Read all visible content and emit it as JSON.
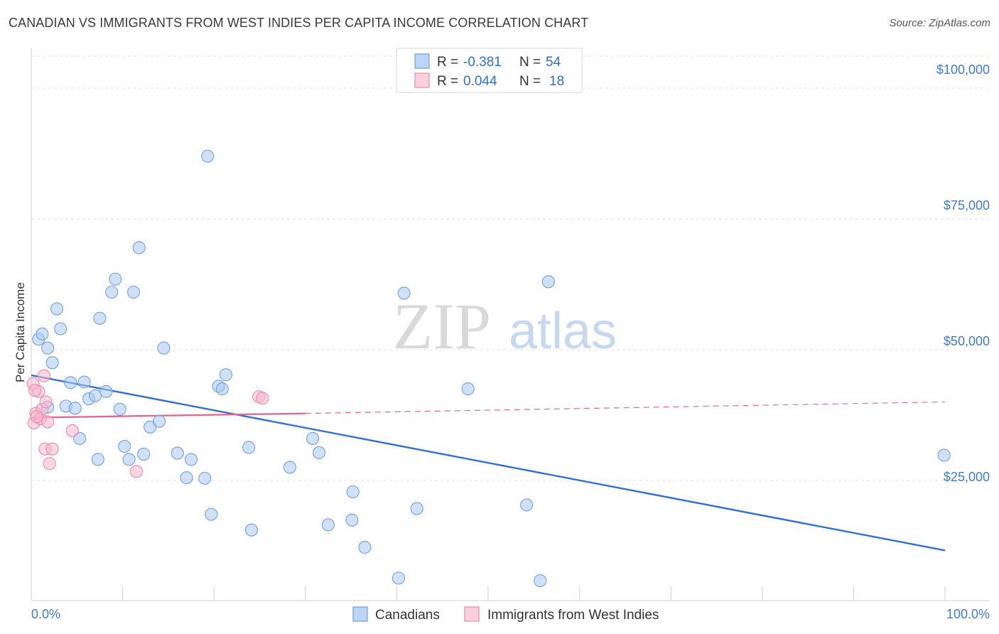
{
  "title": "CANADIAN VS IMMIGRANTS FROM WEST INDIES PER CAPITA INCOME CORRELATION CHART",
  "source": "Source: ZipAtlas.com",
  "watermark": {
    "zip": "ZIP",
    "atlas": "atlas"
  },
  "colors": {
    "blue_fill": "#a9c9f0",
    "blue_stroke": "#6fa0de",
    "blue_line": "#2f6fd6",
    "pink_fill": "#f7b6cc",
    "pink_stroke": "#e98aa9",
    "pink_line": "#e06b92",
    "axis_text": "#3d7bd4",
    "grid": "#e3e3e3"
  },
  "legend": {
    "rows": [
      {
        "r_label": "R =",
        "r_value": "-0.381",
        "n_label": "N =",
        "n_value": "54"
      },
      {
        "r_label": "R =",
        "r_value": "0.044",
        "n_label": "N =",
        "n_value": "18"
      }
    ]
  },
  "chart_data": {
    "type": "scatter",
    "title": "CANADIAN VS IMMIGRANTS FROM WEST INDIES PER CAPITA INCOME CORRELATION CHART",
    "xlabel": "",
    "ylabel": "Per Capita Income",
    "xlim": [
      0,
      100
    ],
    "ylim": [
      2000,
      106000
    ],
    "x_tick_labels": [
      "0.0%",
      "100.0%"
    ],
    "y_ticks": [
      25000,
      50000,
      75000,
      100000
    ],
    "y_tick_labels": [
      "$25,000",
      "$50,000",
      "$75,000",
      "$100,000"
    ],
    "grid": true,
    "series": [
      {
        "name": "Canadians",
        "points": [
          [
            1.8,
            39000
          ],
          [
            0.8,
            52000
          ],
          [
            1.2,
            53000
          ],
          [
            1.8,
            50300
          ],
          [
            2.3,
            47500
          ],
          [
            2.8,
            57800
          ],
          [
            3.2,
            54000
          ],
          [
            3.8,
            39200
          ],
          [
            4.3,
            43700
          ],
          [
            4.8,
            38800
          ],
          [
            5.3,
            33000
          ],
          [
            5.8,
            43800
          ],
          [
            6.3,
            40600
          ],
          [
            7.0,
            41200
          ],
          [
            7.3,
            29000
          ],
          [
            7.5,
            56000
          ],
          [
            8.2,
            42000
          ],
          [
            8.8,
            61000
          ],
          [
            9.2,
            63500
          ],
          [
            9.7,
            38600
          ],
          [
            10.2,
            31500
          ],
          [
            10.7,
            29000
          ],
          [
            11.2,
            61000
          ],
          [
            11.8,
            69500
          ],
          [
            12.3,
            30000
          ],
          [
            13.0,
            35200
          ],
          [
            14.0,
            36300
          ],
          [
            14.5,
            50300
          ],
          [
            16.0,
            30200
          ],
          [
            17.0,
            25500
          ],
          [
            17.5,
            29000
          ],
          [
            19.0,
            25400
          ],
          [
            19.3,
            87000
          ],
          [
            19.7,
            18500
          ],
          [
            20.5,
            43000
          ],
          [
            20.9,
            42500
          ],
          [
            21.3,
            45200
          ],
          [
            23.8,
            31300
          ],
          [
            24.1,
            15500
          ],
          [
            28.3,
            27500
          ],
          [
            30.8,
            33000
          ],
          [
            31.5,
            30300
          ],
          [
            32.5,
            16500
          ],
          [
            35.1,
            17400
          ],
          [
            35.2,
            22800
          ],
          [
            36.5,
            12200
          ],
          [
            40.2,
            6300
          ],
          [
            40.8,
            60800
          ],
          [
            42.2,
            19600
          ],
          [
            47.8,
            42500
          ],
          [
            54.2,
            20300
          ],
          [
            55.7,
            5800
          ],
          [
            56.6,
            63000
          ],
          [
            99.9,
            29800
          ]
        ]
      },
      {
        "name": "Immigrants from West Indies",
        "points": [
          [
            0.3,
            36000
          ],
          [
            0.5,
            37800
          ],
          [
            0.8,
            42000
          ],
          [
            1.0,
            36800
          ],
          [
            1.2,
            38600
          ],
          [
            1.4,
            45000
          ],
          [
            1.6,
            40000
          ],
          [
            1.8,
            36200
          ],
          [
            1.5,
            31000
          ],
          [
            2.0,
            28200
          ],
          [
            2.3,
            31000
          ],
          [
            4.5,
            34500
          ],
          [
            11.5,
            26700
          ],
          [
            24.9,
            41000
          ],
          [
            25.3,
            40700
          ],
          [
            0.2,
            43500
          ],
          [
            0.6,
            37200
          ],
          [
            0.4,
            42200
          ]
        ]
      }
    ],
    "trendlines": [
      {
        "series": "Canadians",
        "x": [
          0,
          100
        ],
        "y": [
          45100,
          11600
        ],
        "style": "solid"
      },
      {
        "series": "Immigrants from West Indies",
        "x": [
          0,
          30
        ],
        "y": [
          37000,
          37800
        ],
        "style": "solid"
      },
      {
        "series": "Immigrants from West Indies",
        "x": [
          30,
          100
        ],
        "y": [
          37800,
          40000
        ],
        "style": "dashed"
      }
    ],
    "legend_placement": "top-center"
  }
}
